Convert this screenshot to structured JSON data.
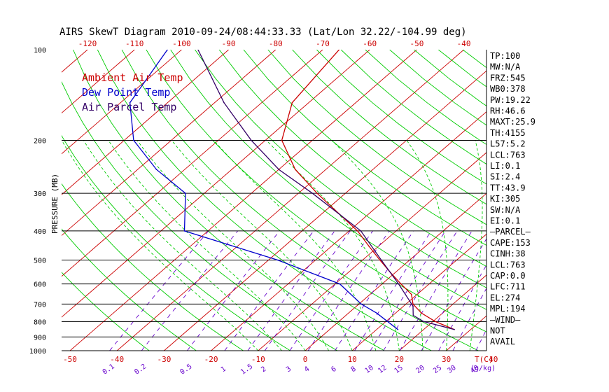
{
  "chart_data": {
    "type": "line",
    "title": "AIRS SkewT Diagram 2010-09-24/08:44:33.33 (Lat/Lon 32.22/-104.99 deg)",
    "ylabel": "PRESSURE (MB)",
    "xlabel_bottom_unit": "T(C)",
    "mixing_ratio_unit": "(g/kg)",
    "y_scale": "log",
    "ylim": [
      1000,
      100
    ],
    "pressure_levels": [
      1000,
      900,
      800,
      700,
      600,
      500,
      400,
      300,
      200,
      100
    ],
    "top_temp_ticks": [
      -120,
      -110,
      -100,
      -90,
      -80,
      -70,
      -60,
      -50,
      -40
    ],
    "bottom_temp_ticks": [
      -50,
      -40,
      -30,
      -20,
      -10,
      0,
      10,
      20,
      30,
      40
    ],
    "mixing_ratio_labels": [
      "0.1",
      "0.2",
      "0.5",
      "1",
      "1.5",
      "2",
      "3",
      "4",
      "6",
      "8",
      "10",
      "12",
      "15",
      "20",
      "25",
      "30",
      "40"
    ],
    "mixing_ratio_values": [
      0.1,
      0.2,
      0.5,
      1,
      1.5,
      2,
      3,
      4,
      6,
      8,
      10,
      12,
      15,
      20,
      25,
      30,
      40
    ],
    "legend": [
      "Ambient Air Temp",
      "Dew Point Temp",
      "Air Parcel Temp"
    ],
    "legend_placement": "top-left",
    "series": [
      {
        "name": "Ambient Air Temp",
        "color": "#cc0000",
        "points": [
          {
            "p": 850,
            "t": 26.5
          },
          {
            "p": 800,
            "t": 20.5
          },
          {
            "p": 750,
            "t": 15.5
          },
          {
            "p": 700,
            "t": 11.5
          },
          {
            "p": 650,
            "t": 8.8
          },
          {
            "p": 600,
            "t": 4.0
          },
          {
            "p": 550,
            "t": -1.0
          },
          {
            "p": 500,
            "t": -6.3
          },
          {
            "p": 450,
            "t": -12.0
          },
          {
            "p": 400,
            "t": -18.2
          },
          {
            "p": 350,
            "t": -26.5
          },
          {
            "p": 300,
            "t": -36.0
          },
          {
            "p": 250,
            "t": -46.5
          },
          {
            "p": 200,
            "t": -56.5
          },
          {
            "p": 150,
            "t": -63.5
          },
          {
            "p": 100,
            "t": -66.5
          }
        ]
      },
      {
        "name": "Dew Point Temp",
        "color": "#0000cc",
        "points": [
          {
            "p": 850,
            "t": 14.5
          },
          {
            "p": 750,
            "t": 6.0
          },
          {
            "p": 700,
            "t": 0.5
          },
          {
            "p": 600,
            "t": -9.0
          },
          {
            "p": 500,
            "t": -28.0
          },
          {
            "p": 400,
            "t": -55.0
          },
          {
            "p": 300,
            "t": -64.0
          },
          {
            "p": 250,
            "t": -76.0
          },
          {
            "p": 200,
            "t": -88.0
          },
          {
            "p": 150,
            "t": -98.0
          },
          {
            "p": 100,
            "t": -103.0
          }
        ]
      },
      {
        "name": "Air Parcel Temp",
        "color": "#330066",
        "points": [
          {
            "p": 850,
            "t": 26.5
          },
          {
            "p": 800,
            "t": 18.0
          },
          {
            "p": 763,
            "t": 14.3
          },
          {
            "p": 711,
            "t": 12.0
          },
          {
            "p": 600,
            "t": 3.5
          },
          {
            "p": 500,
            "t": -6.0
          },
          {
            "p": 400,
            "t": -17.5
          },
          {
            "p": 300,
            "t": -37.0
          },
          {
            "p": 250,
            "t": -50.0
          },
          {
            "p": 200,
            "t": -63.0
          },
          {
            "p": 150,
            "t": -78.0
          },
          {
            "p": 100,
            "t": -96.5
          }
        ]
      }
    ],
    "indices": [
      "TP:100",
      "MW:N/A",
      "FRZ:545",
      "WB0:378",
      "PW:19.22",
      "RH:46.6",
      "MAXT:25.9",
      "TH:4155",
      "L57:5.2",
      "LCL:763",
      "LI:0.1",
      "SI:2.4",
      "TT:43.9",
      "KI:305",
      "SW:N/A",
      "EI:0.1",
      "—PARCEL—",
      "CAPE:153",
      "CINH:38",
      "LCL:763",
      "CAP:0.0",
      "LFC:711",
      "EL:274",
      "MPL:194",
      "—WIND—",
      "NOT",
      "AVAIL"
    ],
    "colors": {
      "isotherm": "#cc0000",
      "dry_adiabat": "#00cc00",
      "moist_adiabat": "#00cc00",
      "mixing_ratio": "#6600cc",
      "isobar": "#000000",
      "text": "#000000",
      "bottom_tick_text": "#cc0000",
      "mixing_ratio_text": "#6600cc"
    }
  }
}
